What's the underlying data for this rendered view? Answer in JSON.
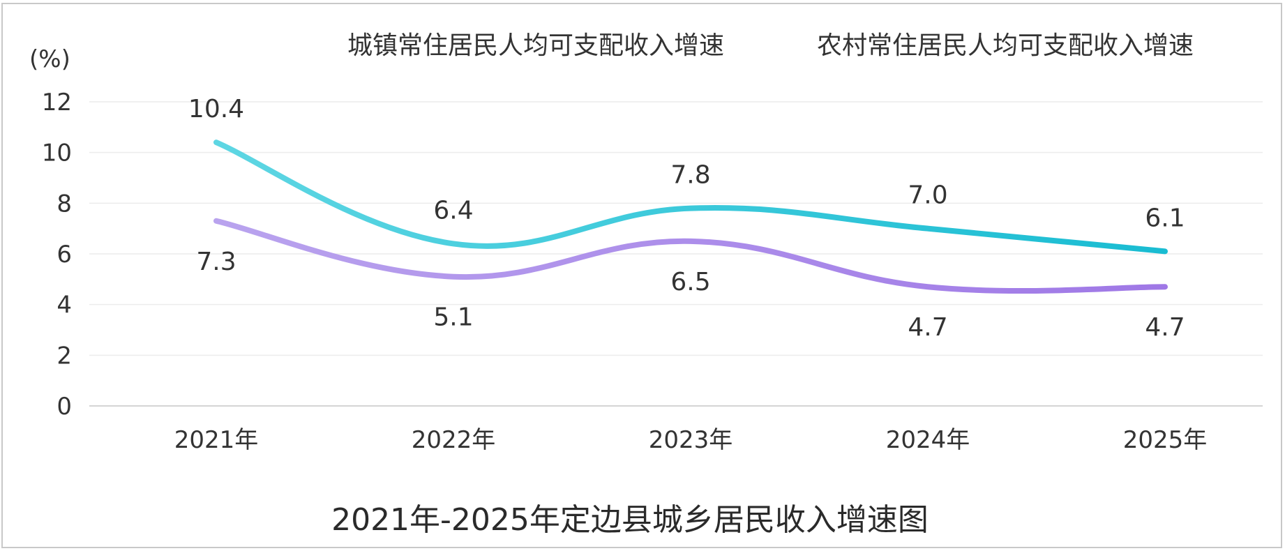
{
  "chart_data": {
    "type": "line",
    "title": "2021年-2025年定边县城乡居民收入增速图",
    "ylabel": "(%)",
    "xlabel": "",
    "categories": [
      "2021年",
      "2022年",
      "2023年",
      "2024年",
      "2025年"
    ],
    "ylim": [
      0,
      12
    ],
    "yticks": [
      0,
      2,
      4,
      6,
      8,
      10,
      12
    ],
    "grid": true,
    "smooth": true,
    "legend_position": "top",
    "series": [
      {
        "name": "城镇常住居民人均可支配收入增速",
        "values": [
          7.3,
          5.1,
          6.5,
          4.7,
          4.7
        ],
        "color_start": "#b9a3ee",
        "color_end": "#9f78e6",
        "label_position": "below"
      },
      {
        "name": "农村常住居民人均可支配收入增速",
        "values": [
          10.4,
          6.4,
          7.8,
          7.0,
          6.1
        ],
        "color_start": "#5ed6e3",
        "color_end": "#19bcd2",
        "label_position": "above"
      }
    ]
  }
}
